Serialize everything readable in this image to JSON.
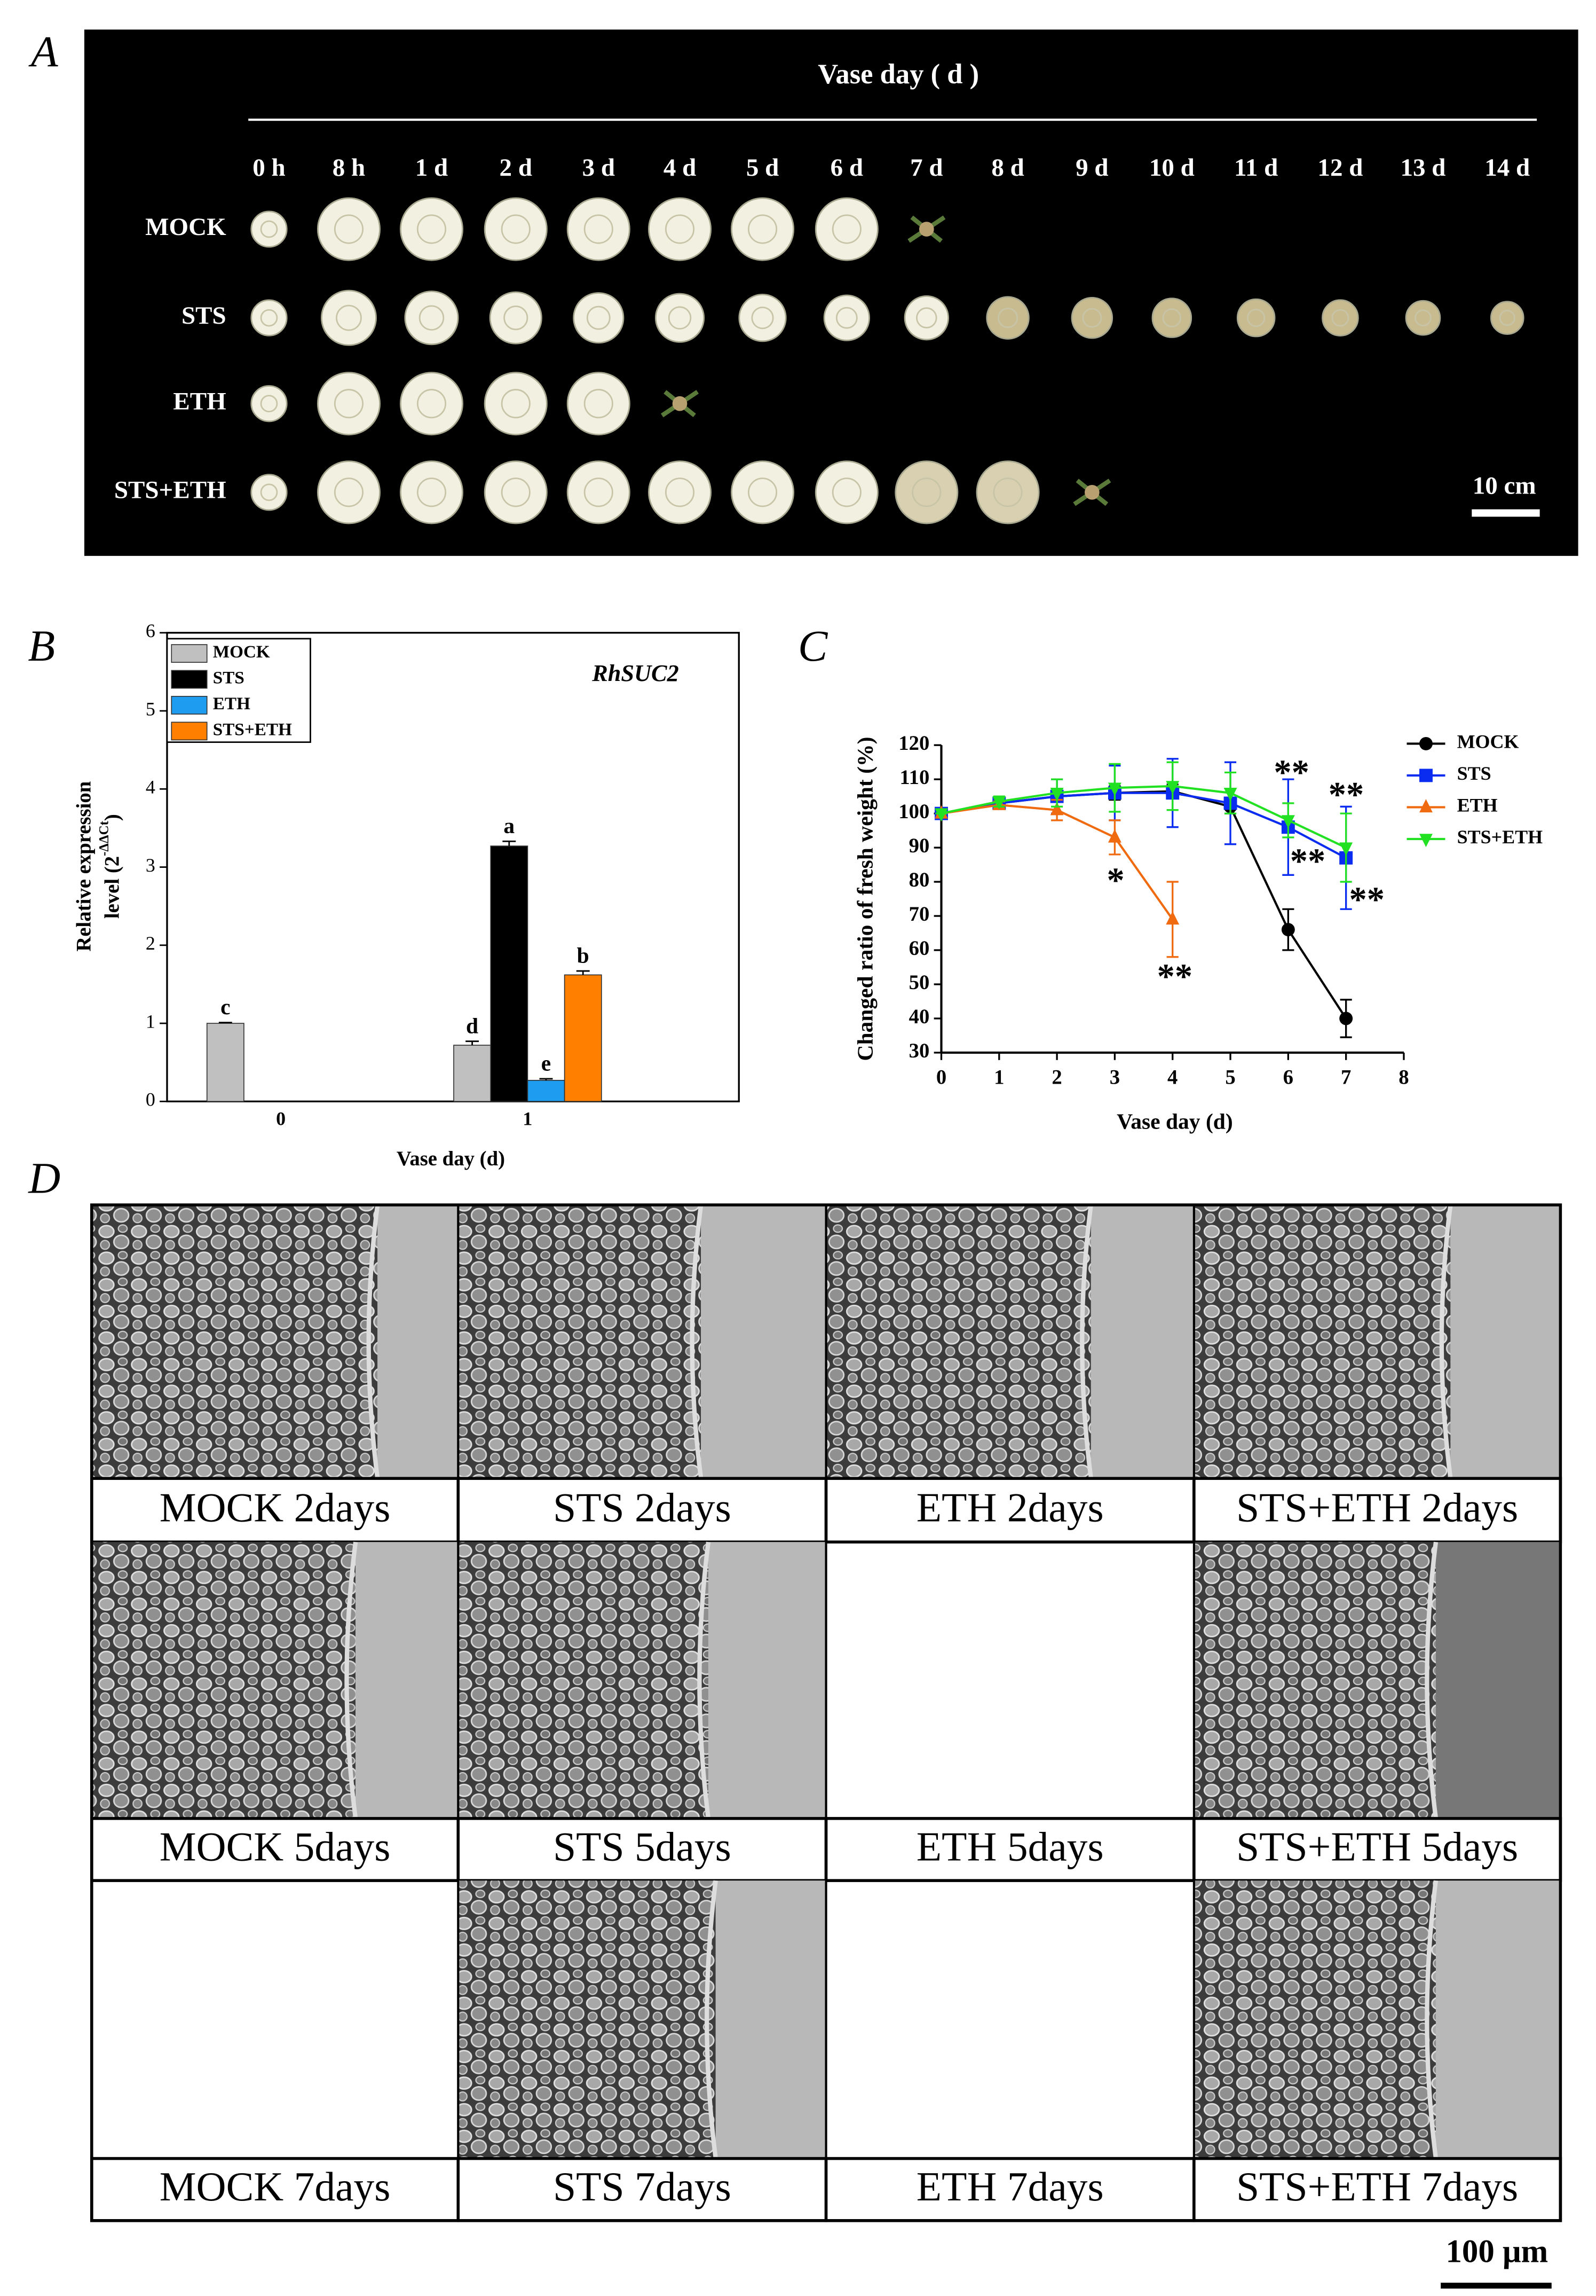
{
  "panel_a": {
    "label": "A",
    "header": "Vase day ( d )",
    "columns": [
      "0 h",
      "8 h",
      "1 d",
      "2 d",
      "3 d",
      "4 d",
      "5 d",
      "6 d",
      "7 d",
      "8 d",
      "9 d",
      "10 d",
      "11 d",
      "12 d",
      "13 d",
      "14 d"
    ],
    "rows": [
      "MOCK",
      "STS",
      "ETH",
      "STS+ETH"
    ],
    "scale_bar": "10 cm"
  },
  "chart_data": [
    {
      "type": "bar",
      "label": "B",
      "title": "RhSUC2",
      "ylabel": "Relative expression",
      "ylabel2": "level (2",
      "ylabel_sup": "-ΔΔCt",
      "ylabel_end": ")",
      "xlabel": "Vase day (d)",
      "categories": [
        "0",
        "1"
      ],
      "series": [
        {
          "name": "MOCK",
          "color": "#c0c0c0",
          "values": [
            1,
            0.72
          ],
          "errors": [
            0.01,
            0.05
          ],
          "letters": [
            "c",
            "d"
          ]
        },
        {
          "name": "STS",
          "color": "#000000",
          "values": [
            null,
            3.27
          ],
          "errors": [
            null,
            0.06
          ],
          "letters": [
            null,
            "a"
          ]
        },
        {
          "name": "ETH",
          "color": "#1e9cf0",
          "values": [
            null,
            0.27
          ],
          "errors": [
            null,
            0.02
          ],
          "letters": [
            null,
            "e"
          ]
        },
        {
          "name": "STS+ETH",
          "color": "#ff8000",
          "values": [
            null,
            1.62
          ],
          "errors": [
            null,
            0.05
          ],
          "letters": [
            null,
            "b"
          ]
        }
      ],
      "ylim": [
        0,
        6
      ],
      "yticks": [
        0,
        1,
        2,
        3,
        4,
        5,
        6
      ]
    },
    {
      "type": "line",
      "label": "C",
      "ylabel": "Changed ratio of fresh weight (%)",
      "xlabel": "Vase day (d)",
      "x": [
        0,
        1,
        2,
        3,
        4,
        5,
        6,
        7
      ],
      "series": [
        {
          "name": "MOCK",
          "color": "#000000",
          "marker": "circle",
          "values": [
            100,
            103,
            105,
            106,
            106.5,
            102,
            66,
            40
          ],
          "errors": [
            0,
            1,
            1,
            2,
            2,
            2,
            6,
            5.5
          ]
        },
        {
          "name": "STS",
          "color": "#0a2cf0",
          "marker": "square",
          "values": [
            100,
            103,
            105,
            106,
            106,
            103,
            96,
            87
          ],
          "errors": [
            0,
            1,
            5,
            8,
            10,
            12,
            14,
            15
          ]
        },
        {
          "name": "ETH",
          "color": "#f06a10",
          "marker": "triangle",
          "values": [
            100,
            102.5,
            101,
            93,
            69,
            null,
            null,
            null
          ],
          "errors": [
            0,
            1,
            3,
            5,
            11,
            null,
            null,
            null
          ]
        },
        {
          "name": "STS+ETH",
          "color": "#22e022",
          "marker": "triangle-down",
          "values": [
            100,
            103.5,
            106,
            107.5,
            108,
            106,
            98,
            90
          ],
          "errors": [
            0,
            1.5,
            4,
            7,
            7,
            6,
            5,
            10
          ]
        }
      ],
      "annotations": [
        "*",
        "**",
        "**",
        "**",
        "**",
        "**"
      ],
      "xlim": [
        0,
        8
      ],
      "xticks": [
        0,
        1,
        2,
        3,
        4,
        5,
        6,
        7,
        8
      ],
      "ylim": [
        30,
        120
      ],
      "yticks": [
        30,
        40,
        50,
        60,
        70,
        80,
        90,
        100,
        110,
        120
      ]
    }
  ],
  "panel_d": {
    "label": "D",
    "captions": [
      [
        "MOCK 2days",
        "STS 2days",
        "ETH 2days",
        "STS+ETH 2days"
      ],
      [
        "MOCK 5days",
        "STS 5days",
        "ETH 5days",
        "STS+ETH 5days"
      ],
      [
        "MOCK 7days",
        "STS 7days",
        "ETH 7days",
        "STS+ETH 7days"
      ]
    ],
    "scale_bar": "100 μm"
  }
}
